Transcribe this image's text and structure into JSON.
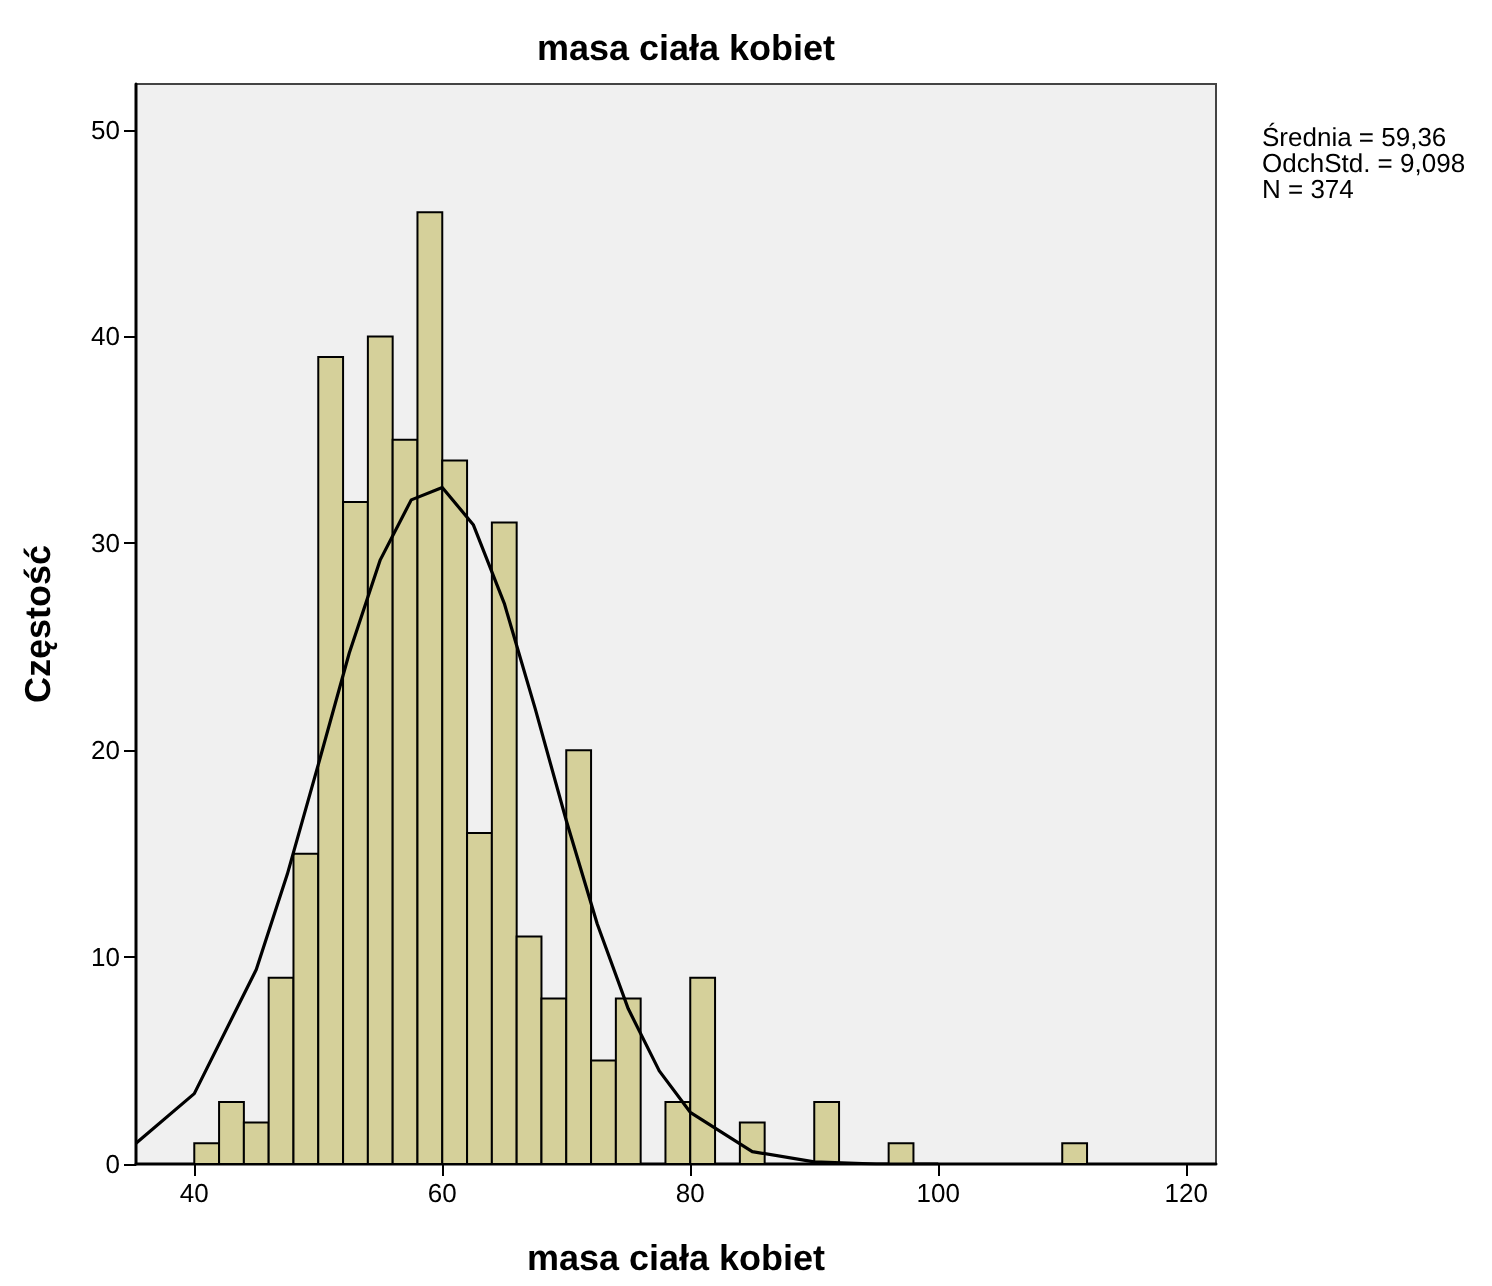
{
  "chart_data": {
    "type": "histogram",
    "title": "masa ciała kobiet",
    "xlabel": "masa ciała kobiet",
    "ylabel": "Częstość",
    "bins": [
      40,
      42,
      44,
      46,
      48,
      50,
      52,
      54,
      56,
      58,
      60,
      62,
      64,
      66,
      68,
      70,
      72,
      74,
      76,
      78,
      80,
      82,
      84,
      86,
      88,
      90,
      92,
      94,
      96,
      98,
      100,
      102,
      104,
      106,
      108,
      110,
      112
    ],
    "series": [
      {
        "color": "#d5d09a",
        "values": [
          1,
          3,
          2,
          9,
          15,
          39,
          32,
          40,
          35,
          46,
          34,
          16,
          31,
          11,
          8,
          20,
          5,
          8,
          0,
          3,
          9,
          0,
          2,
          0,
          0,
          3,
          0,
          0,
          1,
          0,
          0,
          0,
          0,
          0,
          0,
          1
        ]
      },
      {
        "type": "line",
        "color": "#000000",
        "x": [
          35.3,
          40,
          45,
          47.5,
          50,
          52.5,
          55,
          57.5,
          60,
          62.5,
          65,
          67.5,
          70,
          72.5,
          75,
          77.5,
          80,
          85,
          90,
          95,
          100
        ],
        "values": [
          1,
          3.4,
          9.4,
          14,
          19.3,
          24.7,
          29.2,
          32.1,
          32.7,
          30.9,
          27.1,
          22,
          16.6,
          11.6,
          7.5,
          4.5,
          2.5,
          0.6,
          0.1,
          0,
          0
        ]
      }
    ],
    "xlim": [
      35.3,
      122.4
    ],
    "ylim": [
      0,
      52.2
    ],
    "xticks": [
      40,
      60,
      80,
      100,
      120
    ],
    "yticks": [
      0,
      10,
      20,
      30,
      40,
      50
    ],
    "grid": false,
    "marker": "none",
    "line_style": "solid",
    "annotations": [
      "Średnia = 59,36",
      "OdchStd. = 9,098",
      "N = 374"
    ]
  }
}
